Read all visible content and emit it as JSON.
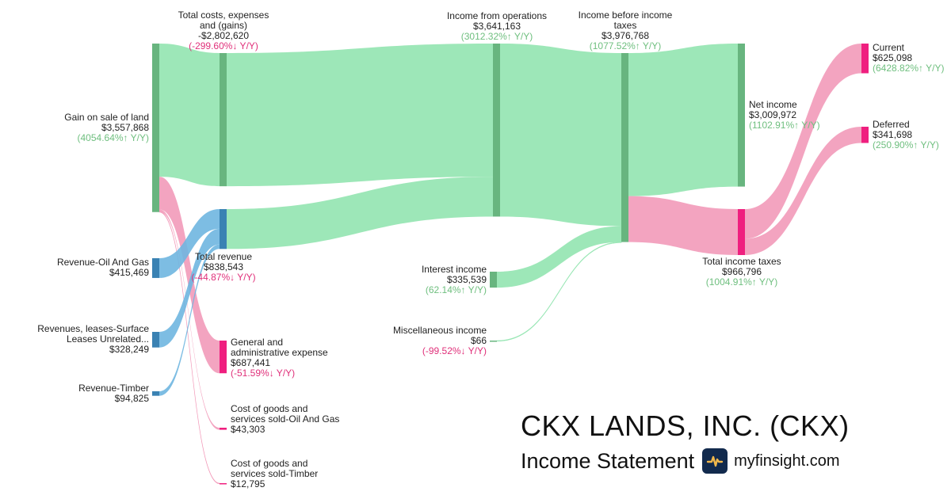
{
  "title": "CKX LANDS, INC. (CKX)",
  "subtitle": "Income Statement",
  "site": "myfinsight.com",
  "colors": {
    "green_link": "#98e6b4",
    "pink_link": "#f29ab9",
    "blue_link": "#6fb6e0",
    "green_node": "#68b57f",
    "pink_node": "#ef1f7f",
    "blue_node": "#3a82b3",
    "up": "#6fbf7f",
    "down": "#e0307a"
  },
  "chart_data": {
    "type": "sankey",
    "nodes": [
      {
        "id": "gain",
        "name": "Gain on sale of land",
        "value": "$3,557,868",
        "change": "(4054.64%↑ Y/Y)",
        "dir": "up"
      },
      {
        "id": "rev_oil",
        "name": "Revenue-Oil And Gas",
        "value": "$415,469",
        "change": "",
        "dir": ""
      },
      {
        "id": "rev_surface",
        "name": "Revenues, leases-Surface\nLeases Unrelated...",
        "value": "$328,249",
        "change": "",
        "dir": ""
      },
      {
        "id": "rev_timber",
        "name": "Revenue-Timber",
        "value": "$94,825",
        "change": "",
        "dir": ""
      },
      {
        "id": "total_costs",
        "name": "Total costs, expenses\nand (gains)",
        "value": "-$2,802,620",
        "change": "(-299.60%↓ Y/Y)",
        "dir": "down"
      },
      {
        "id": "total_revenue",
        "name": "Total revenue",
        "value": "$838,543",
        "change": "(-44.87%↓ Y/Y)",
        "dir": "down"
      },
      {
        "id": "ga",
        "name": "General and\nadministrative expense",
        "value": "$687,441",
        "change": "(-51.59%↓ Y/Y)",
        "dir": "down"
      },
      {
        "id": "cogs_oil",
        "name": "Cost of goods and\nservices sold-Oil And Gas",
        "value": "$43,303",
        "change": "",
        "dir": ""
      },
      {
        "id": "cogs_timber",
        "name": "Cost of goods and\nservices sold-Timber",
        "value": "$12,795",
        "change": "",
        "dir": ""
      },
      {
        "id": "income_ops",
        "name": "Income from operations",
        "value": "$3,641,163",
        "change": "(3012.32%↑ Y/Y)",
        "dir": "up"
      },
      {
        "id": "interest",
        "name": "Interest income",
        "value": "$335,539",
        "change": "(62.14%↑ Y/Y)",
        "dir": "up"
      },
      {
        "id": "misc",
        "name": "Miscellaneous income",
        "value": "$66",
        "change": "(-99.52%↓ Y/Y)",
        "dir": "down"
      },
      {
        "id": "ibt",
        "name": "Income before income\ntaxes",
        "value": "$3,976,768",
        "change": "(1077.52%↑ Y/Y)",
        "dir": "up"
      },
      {
        "id": "net_income",
        "name": "Net income",
        "value": "$3,009,972",
        "change": "(1102.91%↑ Y/Y)",
        "dir": "up"
      },
      {
        "id": "taxes",
        "name": "Total income taxes",
        "value": "$966,796",
        "change": "(1004.91%↑ Y/Y)",
        "dir": "up"
      },
      {
        "id": "current",
        "name": "Current",
        "value": "$625,098",
        "change": "(6428.82%↑ Y/Y)",
        "dir": "up"
      },
      {
        "id": "deferred",
        "name": "Deferred",
        "value": "$341,698",
        "change": "(250.90%↑ Y/Y)",
        "dir": "up"
      }
    ],
    "links": [
      {
        "source": "gain",
        "target": "total_costs",
        "value": 2802620,
        "kind": "green"
      },
      {
        "source": "gain",
        "target": "ga",
        "value": 687441,
        "kind": "pink"
      },
      {
        "source": "gain",
        "target": "cogs_oil",
        "value": 43303,
        "kind": "pink"
      },
      {
        "source": "gain",
        "target": "cogs_timber",
        "value": 12795,
        "kind": "pink"
      },
      {
        "source": "rev_oil",
        "target": "total_revenue",
        "value": 415469,
        "kind": "blue"
      },
      {
        "source": "rev_surface",
        "target": "total_revenue",
        "value": 328249,
        "kind": "blue"
      },
      {
        "source": "rev_timber",
        "target": "total_revenue",
        "value": 94825,
        "kind": "blue"
      },
      {
        "source": "total_costs",
        "target": "income_ops",
        "value": 2802620,
        "kind": "green"
      },
      {
        "source": "total_revenue",
        "target": "income_ops",
        "value": 838543,
        "kind": "green"
      },
      {
        "source": "income_ops",
        "target": "ibt",
        "value": 3641163,
        "kind": "green"
      },
      {
        "source": "interest",
        "target": "ibt",
        "value": 335539,
        "kind": "green"
      },
      {
        "source": "misc",
        "target": "ibt",
        "value": 66,
        "kind": "green"
      },
      {
        "source": "ibt",
        "target": "net_income",
        "value": 3009972,
        "kind": "green"
      },
      {
        "source": "ibt",
        "target": "taxes",
        "value": 966796,
        "kind": "pink"
      },
      {
        "source": "taxes",
        "target": "current",
        "value": 625098,
        "kind": "pink"
      },
      {
        "source": "taxes",
        "target": "deferred",
        "value": 341698,
        "kind": "pink"
      }
    ]
  }
}
